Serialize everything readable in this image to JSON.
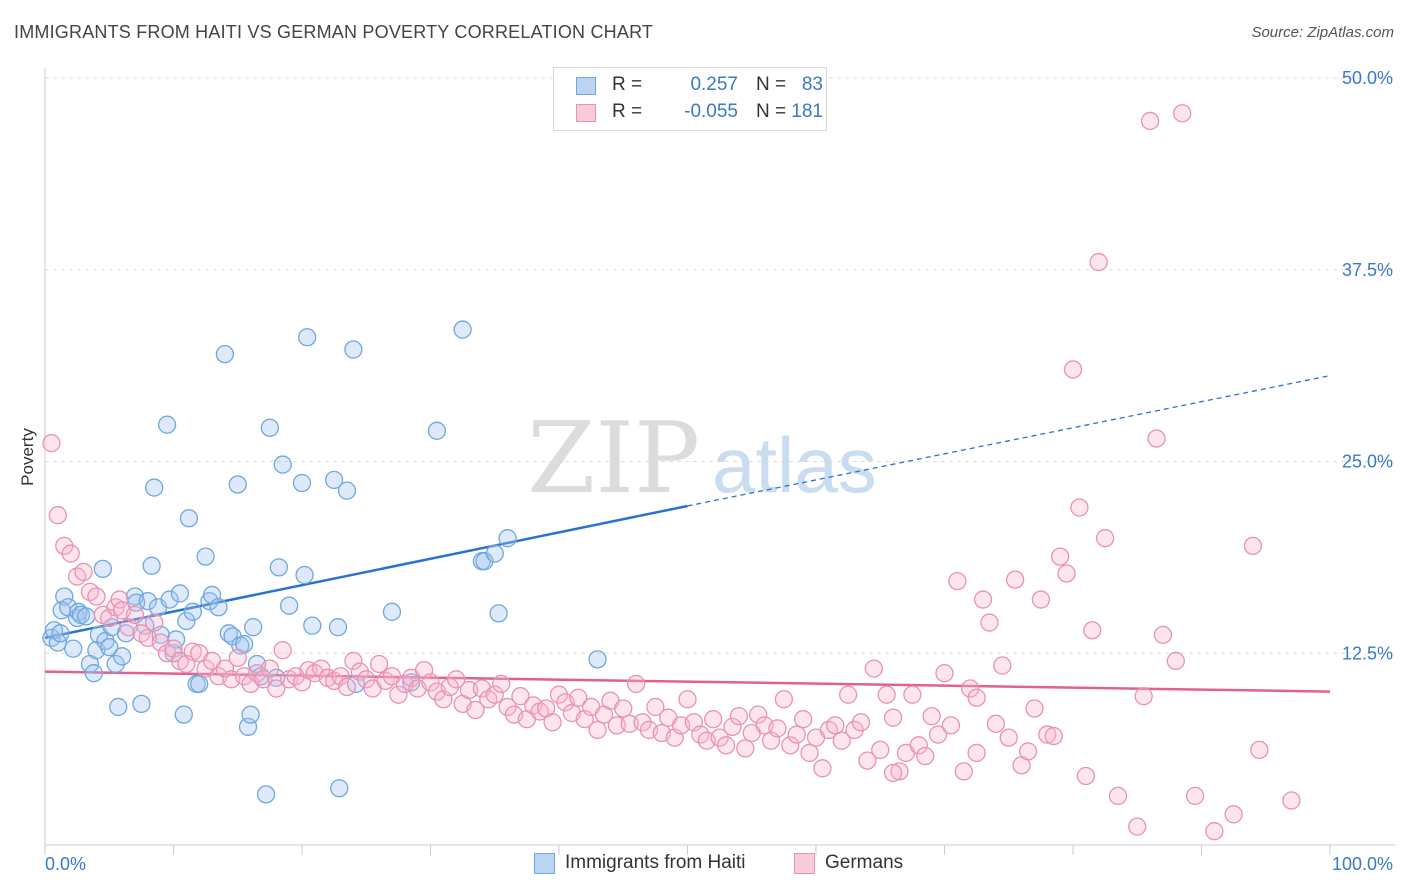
{
  "title": "IMMIGRANTS FROM HAITI VS GERMAN POVERTY CORRELATION CHART",
  "source": "Source: ZipAtlas.com",
  "watermark": {
    "zip": "ZIP",
    "atlas": "atlas"
  },
  "colors": {
    "blue": "#6fa8dc",
    "blue_fill": "rgba(160,196,240,0.35)",
    "blue_line": "#2a72d0",
    "pink": "#e892b2",
    "pink_fill": "rgba(248,180,205,0.35)",
    "pink_line": "#e0608f",
    "tick_label": "#3a78c9",
    "grid": "#dddddd"
  },
  "legend": {
    "rows": [
      {
        "r_label": "R =",
        "r_value": "0.257",
        "n_label": "N =",
        "n_value": "83"
      },
      {
        "r_label": "R =",
        "r_value": "-0.055",
        "n_label": "N =",
        "n_value": "181"
      }
    ]
  },
  "chart_data": {
    "type": "scatter",
    "title": "IMMIGRANTS FROM HAITI VS GERMAN POVERTY CORRELATION CHART",
    "xlabel": "",
    "ylabel": "Poverty",
    "xlim": [
      0,
      100
    ],
    "ylim": [
      0,
      50
    ],
    "x_tick_labels": [
      "0.0%",
      "100.0%"
    ],
    "y_ticks": [
      12.5,
      25.0,
      37.5,
      50.0
    ],
    "y_tick_labels": [
      "12.5%",
      "25.0%",
      "37.5%",
      "50.0%"
    ],
    "grid": true,
    "series": [
      {
        "name": "Immigrants from Haiti",
        "r": 0.257,
        "n": 83,
        "trend": {
          "x0": 0,
          "y0": 13.5,
          "x1": 50,
          "y1": 22.1,
          "dashed_to_x": 100,
          "dashed_to_y": 30.6
        },
        "points": [
          [
            0.5,
            13.5
          ],
          [
            0.7,
            14.0
          ],
          [
            1.0,
            13.2
          ],
          [
            1.2,
            13.8
          ],
          [
            1.5,
            16.2
          ],
          [
            1.3,
            15.3
          ],
          [
            1.8,
            15.5
          ],
          [
            2.2,
            12.8
          ],
          [
            2.5,
            14.8
          ],
          [
            2.6,
            15.2
          ],
          [
            2.8,
            15.0
          ],
          [
            3.2,
            14.9
          ],
          [
            3.5,
            11.8
          ],
          [
            3.8,
            11.2
          ],
          [
            4.0,
            12.7
          ],
          [
            4.2,
            13.7
          ],
          [
            4.5,
            18.0
          ],
          [
            4.7,
            13.3
          ],
          [
            5.0,
            12.9
          ],
          [
            5.2,
            14.2
          ],
          [
            5.5,
            11.8
          ],
          [
            5.7,
            9.0
          ],
          [
            6.0,
            12.3
          ],
          [
            6.3,
            13.8
          ],
          [
            7.0,
            16.2
          ],
          [
            7.1,
            15.8
          ],
          [
            7.5,
            9.2
          ],
          [
            7.8,
            14.3
          ],
          [
            8.0,
            15.9
          ],
          [
            8.3,
            18.2
          ],
          [
            8.5,
            23.3
          ],
          [
            8.8,
            15.5
          ],
          [
            9.0,
            13.7
          ],
          [
            9.5,
            27.4
          ],
          [
            9.7,
            16.0
          ],
          [
            10.0,
            12.5
          ],
          [
            10.2,
            13.4
          ],
          [
            10.5,
            16.4
          ],
          [
            10.8,
            8.5
          ],
          [
            11.0,
            14.6
          ],
          [
            11.2,
            21.3
          ],
          [
            11.5,
            15.2
          ],
          [
            11.8,
            10.5
          ],
          [
            12.0,
            10.5
          ],
          [
            12.5,
            18.8
          ],
          [
            12.8,
            15.9
          ],
          [
            13.0,
            16.3
          ],
          [
            13.5,
            15.5
          ],
          [
            14.0,
            32.0
          ],
          [
            14.3,
            13.8
          ],
          [
            14.6,
            13.6
          ],
          [
            15.0,
            23.5
          ],
          [
            15.2,
            13.0
          ],
          [
            15.5,
            13.1
          ],
          [
            15.8,
            7.7
          ],
          [
            16.0,
            8.5
          ],
          [
            16.2,
            14.2
          ],
          [
            16.5,
            11.8
          ],
          [
            16.8,
            11.0
          ],
          [
            17.2,
            3.3
          ],
          [
            17.5,
            27.2
          ],
          [
            18.0,
            10.9
          ],
          [
            18.2,
            18.1
          ],
          [
            18.5,
            24.8
          ],
          [
            19.0,
            15.6
          ],
          [
            20.0,
            23.6
          ],
          [
            20.2,
            17.6
          ],
          [
            20.8,
            14.3
          ],
          [
            22.5,
            23.8
          ],
          [
            22.8,
            14.2
          ],
          [
            22.9,
            3.7
          ],
          [
            23.5,
            23.1
          ],
          [
            20.4,
            33.1
          ],
          [
            24.0,
            32.3
          ],
          [
            24.2,
            10.5
          ],
          [
            27.0,
            15.2
          ],
          [
            28.5,
            10.6
          ],
          [
            30.5,
            27.0
          ],
          [
            34.0,
            18.5
          ],
          [
            34.2,
            18.5
          ],
          [
            35.0,
            19.0
          ],
          [
            36.0,
            20.0
          ],
          [
            32.5,
            33.6
          ],
          [
            43.0,
            12.1
          ],
          [
            35.3,
            15.1
          ]
        ]
      },
      {
        "name": "Germans",
        "r": -0.055,
        "n": 181,
        "trend": {
          "x0": 0,
          "y0": 11.3,
          "x1": 100,
          "y1": 10.0
        },
        "points": [
          [
            0.5,
            26.2
          ],
          [
            1.0,
            21.5
          ],
          [
            1.5,
            19.5
          ],
          [
            2.0,
            19.0
          ],
          [
            2.5,
            17.5
          ],
          [
            3.0,
            17.8
          ],
          [
            3.5,
            16.5
          ],
          [
            4.0,
            16.2
          ],
          [
            4.5,
            15.0
          ],
          [
            5.0,
            14.8
          ],
          [
            5.5,
            15.5
          ],
          [
            5.8,
            16.0
          ],
          [
            6.0,
            15.3
          ],
          [
            6.5,
            14.2
          ],
          [
            7.0,
            15.0
          ],
          [
            7.5,
            13.8
          ],
          [
            8.0,
            13.5
          ],
          [
            8.5,
            14.5
          ],
          [
            9.0,
            13.2
          ],
          [
            9.5,
            12.5
          ],
          [
            10.0,
            12.8
          ],
          [
            10.5,
            12.0
          ],
          [
            11.0,
            11.8
          ],
          [
            11.5,
            12.6
          ],
          [
            12.0,
            12.5
          ],
          [
            12.5,
            11.5
          ],
          [
            13.0,
            12.0
          ],
          [
            13.5,
            11.0
          ],
          [
            14.0,
            11.5
          ],
          [
            14.5,
            10.8
          ],
          [
            15.0,
            12.2
          ],
          [
            15.5,
            11.0
          ],
          [
            16.0,
            10.5
          ],
          [
            16.5,
            11.2
          ],
          [
            17.0,
            10.8
          ],
          [
            17.5,
            11.5
          ],
          [
            18.0,
            10.2
          ],
          [
            18.5,
            12.7
          ],
          [
            19.0,
            10.8
          ],
          [
            19.5,
            11.0
          ],
          [
            20.0,
            10.6
          ],
          [
            20.5,
            11.4
          ],
          [
            21.0,
            11.2
          ],
          [
            21.5,
            11.5
          ],
          [
            22.0,
            10.9
          ],
          [
            22.5,
            10.7
          ],
          [
            23.0,
            11.0
          ],
          [
            23.5,
            10.3
          ],
          [
            24.0,
            12.0
          ],
          [
            24.5,
            11.3
          ],
          [
            25.0,
            10.8
          ],
          [
            25.5,
            10.2
          ],
          [
            26.0,
            11.8
          ],
          [
            26.5,
            10.7
          ],
          [
            27.0,
            11.0
          ],
          [
            27.5,
            9.8
          ],
          [
            28.0,
            10.5
          ],
          [
            28.5,
            10.9
          ],
          [
            29.0,
            10.2
          ],
          [
            29.5,
            11.4
          ],
          [
            30.0,
            10.6
          ],
          [
            30.5,
            10.0
          ],
          [
            31.0,
            9.5
          ],
          [
            31.5,
            10.3
          ],
          [
            32.0,
            10.8
          ],
          [
            32.5,
            9.2
          ],
          [
            33.0,
            10.1
          ],
          [
            33.5,
            8.8
          ],
          [
            34.0,
            10.2
          ],
          [
            34.5,
            9.5
          ],
          [
            35.0,
            9.8
          ],
          [
            35.5,
            10.5
          ],
          [
            36.0,
            9.0
          ],
          [
            36.5,
            8.5
          ],
          [
            37.0,
            9.7
          ],
          [
            37.5,
            8.2
          ],
          [
            38.0,
            9.1
          ],
          [
            38.5,
            8.7
          ],
          [
            39.0,
            8.9
          ],
          [
            39.5,
            8.0
          ],
          [
            40.0,
            9.8
          ],
          [
            40.5,
            9.3
          ],
          [
            41.0,
            8.6
          ],
          [
            41.5,
            9.6
          ],
          [
            42.0,
            8.2
          ],
          [
            42.5,
            9.0
          ],
          [
            43.0,
            7.5
          ],
          [
            43.5,
            8.5
          ],
          [
            44.0,
            9.4
          ],
          [
            44.5,
            7.8
          ],
          [
            45.0,
            8.9
          ],
          [
            45.5,
            7.9
          ],
          [
            46.0,
            10.5
          ],
          [
            46.5,
            8.0
          ],
          [
            47.0,
            7.5
          ],
          [
            47.5,
            9.0
          ],
          [
            48.0,
            7.3
          ],
          [
            48.5,
            8.3
          ],
          [
            49.0,
            7.0
          ],
          [
            49.5,
            7.8
          ],
          [
            50.0,
            9.5
          ],
          [
            50.5,
            8.0
          ],
          [
            51.0,
            7.2
          ],
          [
            51.5,
            6.8
          ],
          [
            52.0,
            8.2
          ],
          [
            52.5,
            7.0
          ],
          [
            53.0,
            6.5
          ],
          [
            53.5,
            7.7
          ],
          [
            54.0,
            8.4
          ],
          [
            54.5,
            6.3
          ],
          [
            55.0,
            7.3
          ],
          [
            55.5,
            8.5
          ],
          [
            56.0,
            7.8
          ],
          [
            56.5,
            6.8
          ],
          [
            57.0,
            7.6
          ],
          [
            57.5,
            9.5
          ],
          [
            58.0,
            6.5
          ],
          [
            58.5,
            7.2
          ],
          [
            59.0,
            8.2
          ],
          [
            59.5,
            6.0
          ],
          [
            60.0,
            7.0
          ],
          [
            60.5,
            5.0
          ],
          [
            61.0,
            7.5
          ],
          [
            61.5,
            7.8
          ],
          [
            62.0,
            6.8
          ],
          [
            62.5,
            9.8
          ],
          [
            63.0,
            7.5
          ],
          [
            63.5,
            8.0
          ],
          [
            64.0,
            5.5
          ],
          [
            64.5,
            11.5
          ],
          [
            65.0,
            6.2
          ],
          [
            65.5,
            9.8
          ],
          [
            66.0,
            8.3
          ],
          [
            66.5,
            4.8
          ],
          [
            67.0,
            6.0
          ],
          [
            67.5,
            9.8
          ],
          [
            68.0,
            6.5
          ],
          [
            68.5,
            5.8
          ],
          [
            69.0,
            8.4
          ],
          [
            69.5,
            7.2
          ],
          [
            70.0,
            11.2
          ],
          [
            70.5,
            7.8
          ],
          [
            71.0,
            17.2
          ],
          [
            71.5,
            4.8
          ],
          [
            72.0,
            10.2
          ],
          [
            72.5,
            9.6
          ],
          [
            73.0,
            16.0
          ],
          [
            73.5,
            14.5
          ],
          [
            74.0,
            7.9
          ],
          [
            74.5,
            11.7
          ],
          [
            75.0,
            7.0
          ],
          [
            75.5,
            17.3
          ],
          [
            76.0,
            5.2
          ],
          [
            76.5,
            6.1
          ],
          [
            77.0,
            8.9
          ],
          [
            77.5,
            16.0
          ],
          [
            78.0,
            7.2
          ],
          [
            78.5,
            7.1
          ],
          [
            79.0,
            18.8
          ],
          [
            79.5,
            17.7
          ],
          [
            80.0,
            31.0
          ],
          [
            80.5,
            22.0
          ],
          [
            81.0,
            4.5
          ],
          [
            81.5,
            14.0
          ],
          [
            82.0,
            38.0
          ],
          [
            82.5,
            20.0
          ],
          [
            83.5,
            3.2
          ],
          [
            85.0,
            1.2
          ],
          [
            86.0,
            47.2
          ],
          [
            86.5,
            26.5
          ],
          [
            87.0,
            13.7
          ],
          [
            88.0,
            12.0
          ],
          [
            88.5,
            47.7
          ],
          [
            89.5,
            3.2
          ],
          [
            91.0,
            0.9
          ],
          [
            92.5,
            2.0
          ],
          [
            94.0,
            19.5
          ],
          [
            94.5,
            6.2
          ],
          [
            97.0,
            2.9
          ],
          [
            85.5,
            9.7
          ],
          [
            72.5,
            6.0
          ],
          [
            66.0,
            4.7
          ]
        ]
      }
    ]
  },
  "bottom_legend": [
    {
      "label": "Immigrants from Haiti"
    },
    {
      "label": "Germans"
    }
  ]
}
